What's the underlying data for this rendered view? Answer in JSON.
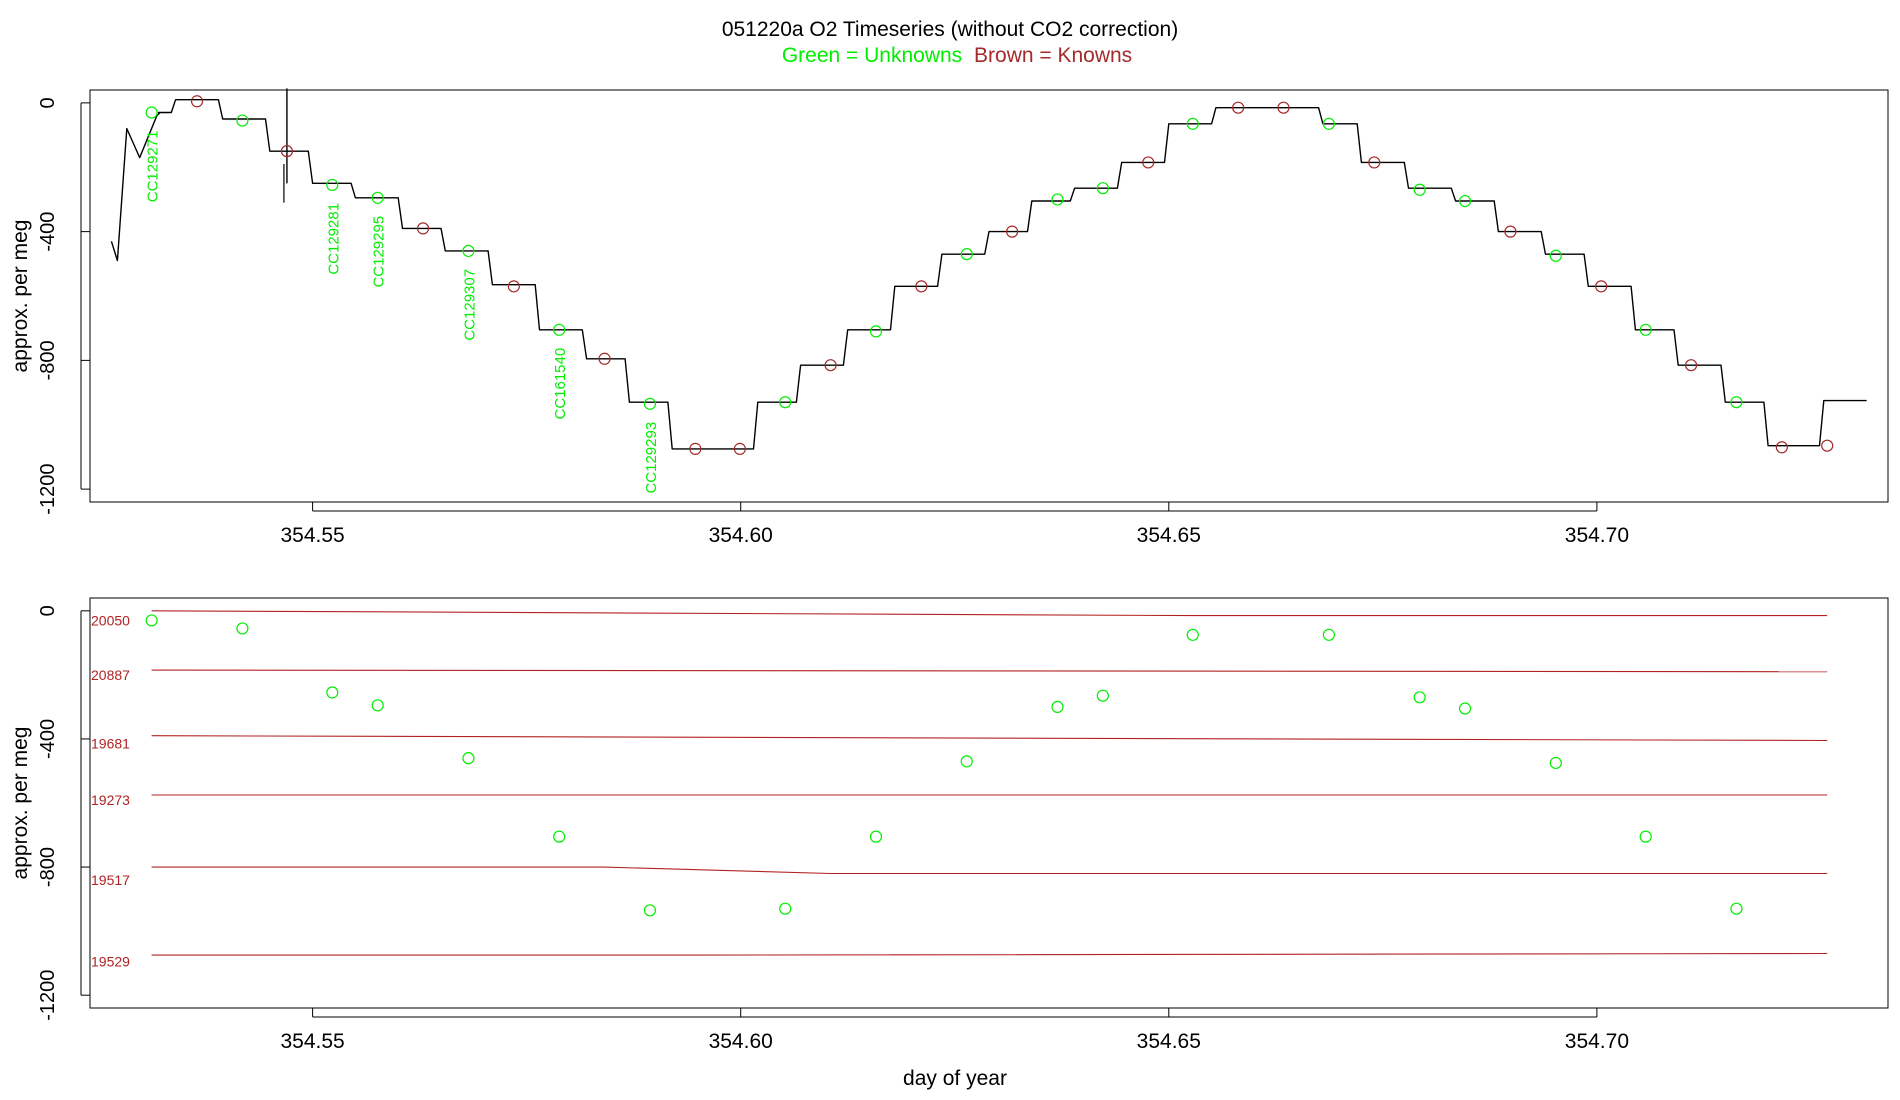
{
  "header": {
    "title": "051220a   O2 Timeseries (without CO2 correction)",
    "legend_green": "Green = Unknowns",
    "legend_brown": "Brown = Knowns"
  },
  "colors": {
    "unknown": "#00ee00",
    "known": "#a52a2a",
    "trace": "#000000",
    "ref_line": "#b22222",
    "ref_label": "#b22222"
  },
  "chart_data": [
    {
      "type": "line",
      "panel": "top",
      "title": "051220a   O2 Timeseries (without CO2 correction)",
      "xlabel": "",
      "ylabel": "approx. per meg",
      "xlim": [
        354.524,
        354.734
      ],
      "ylim": [
        -1240,
        40
      ],
      "xticks": [
        354.55,
        354.6,
        354.65,
        354.7
      ],
      "xtick_labels": [
        "354.55",
        "354.60",
        "354.65",
        "354.70"
      ],
      "yticks": [
        0,
        -400,
        -800,
        -1200
      ],
      "ytick_labels": [
        "0",
        "-400",
        "-800",
        "-1200"
      ],
      "grid": false,
      "trace": {
        "name": "O2 signal",
        "start": [
          354.5265,
          -430
        ],
        "transient": [
          [
            354.5272,
            -490
          ],
          [
            354.5283,
            -80
          ],
          [
            354.5298,
            -170
          ],
          [
            354.5318,
            -40
          ],
          [
            354.5322,
            -30
          ]
        ],
        "steps": [
          [
            354.532,
            354.5335,
            -30
          ],
          [
            354.534,
            354.539,
            10
          ],
          [
            354.5395,
            354.5445,
            -50
          ],
          [
            354.545,
            354.5495,
            -150
          ],
          [
            354.55,
            354.5545,
            -250
          ],
          [
            354.555,
            354.56,
            -295
          ],
          [
            354.5605,
            354.565,
            -390
          ],
          [
            354.5655,
            354.5705,
            -460
          ],
          [
            354.571,
            354.576,
            -565
          ],
          [
            354.5765,
            354.5815,
            -705
          ],
          [
            354.582,
            354.5865,
            -795
          ],
          [
            354.587,
            354.5915,
            -930
          ],
          [
            354.592,
            354.6015,
            -1075
          ],
          [
            354.602,
            354.6065,
            -930
          ],
          [
            354.607,
            354.612,
            -815
          ],
          [
            354.6125,
            354.6175,
            -705
          ],
          [
            354.618,
            354.623,
            -570
          ],
          [
            354.6235,
            354.6285,
            -470
          ],
          [
            354.629,
            354.6335,
            -400
          ],
          [
            354.634,
            354.6385,
            -305
          ],
          [
            354.639,
            354.644,
            -265
          ],
          [
            354.6445,
            354.6495,
            -185
          ],
          [
            354.65,
            354.655,
            -65
          ],
          [
            354.6555,
            354.6675,
            -15
          ],
          [
            354.668,
            354.672,
            -65
          ],
          [
            354.6725,
            354.6775,
            -185
          ],
          [
            354.678,
            354.683,
            -265
          ],
          [
            354.6835,
            354.688,
            -305
          ],
          [
            354.6885,
            354.6935,
            -400
          ],
          [
            354.694,
            354.6985,
            -470
          ],
          [
            354.699,
            354.704,
            -570
          ],
          [
            354.7045,
            354.709,
            -705
          ],
          [
            354.7095,
            354.7145,
            -815
          ],
          [
            354.715,
            354.7195,
            -930
          ],
          [
            354.72,
            354.726,
            -1065
          ],
          [
            354.7265,
            354.7315,
            -925
          ]
        ],
        "spike": [
          354.547,
          -250,
          45
        ]
      },
      "unknowns": [
        {
          "x": 354.5312,
          "y": -30,
          "label": "CC129271"
        },
        {
          "x": 354.5418,
          "y": -55
        },
        {
          "x": 354.5523,
          "y": -255,
          "label": "CC129281"
        },
        {
          "x": 354.5576,
          "y": -295,
          "label": "CC129295"
        },
        {
          "x": 354.5682,
          "y": -460,
          "label": "CC129307"
        },
        {
          "x": 354.5788,
          "y": -705,
          "label": "CC161540"
        },
        {
          "x": 354.5894,
          "y": -935,
          "label": "CC129293"
        },
        {
          "x": 354.6052,
          "y": -930
        },
        {
          "x": 354.6158,
          "y": -710
        },
        {
          "x": 354.6264,
          "y": -470
        },
        {
          "x": 354.637,
          "y": -300
        },
        {
          "x": 354.6423,
          "y": -265
        },
        {
          "x": 354.6528,
          "y": -65
        },
        {
          "x": 354.6687,
          "y": -65
        },
        {
          "x": 354.6793,
          "y": -270
        },
        {
          "x": 354.6846,
          "y": -305
        },
        {
          "x": 354.6952,
          "y": -475
        },
        {
          "x": 354.7057,
          "y": -705
        },
        {
          "x": 354.7163,
          "y": -930
        }
      ],
      "knowns": [
        {
          "x": 354.5365,
          "y": 5
        },
        {
          "x": 354.547,
          "y": -150
        },
        {
          "x": 354.5629,
          "y": -390
        },
        {
          "x": 354.5735,
          "y": -570
        },
        {
          "x": 354.5841,
          "y": -795
        },
        {
          "x": 354.5947,
          "y": -1075
        },
        {
          "x": 354.5999,
          "y": -1075
        },
        {
          "x": 354.6105,
          "y": -815
        },
        {
          "x": 354.6211,
          "y": -570
        },
        {
          "x": 354.6317,
          "y": -400
        },
        {
          "x": 354.6476,
          "y": -185
        },
        {
          "x": 354.6581,
          "y": -15
        },
        {
          "x": 354.6634,
          "y": -15
        },
        {
          "x": 354.674,
          "y": -185
        },
        {
          "x": 354.6899,
          "y": -400
        },
        {
          "x": 354.7005,
          "y": -570
        },
        {
          "x": 354.711,
          "y": -815
        },
        {
          "x": 354.7216,
          "y": -1070
        },
        {
          "x": 354.7269,
          "y": -1065
        }
      ]
    },
    {
      "type": "scatter",
      "panel": "bottom",
      "title": "",
      "xlabel": "day of year",
      "ylabel": "approx. per meg",
      "xlim": [
        354.524,
        354.734
      ],
      "ylim": [
        -1240,
        40
      ],
      "xticks": [
        354.55,
        354.6,
        354.65,
        354.7
      ],
      "xtick_labels": [
        "354.55",
        "354.60",
        "354.65",
        "354.70"
      ],
      "yticks": [
        0,
        -400,
        -800,
        -1200
      ],
      "ytick_labels": [
        "0",
        "-400",
        "-800",
        "-1200"
      ],
      "grid": false,
      "reference_lines": [
        {
          "label": "20050",
          "label_y": -30,
          "points": [
            [
              354.5312,
              0
            ],
            [
              354.6528,
              -15
            ],
            [
              354.7269,
              -15
            ]
          ]
        },
        {
          "label": "20887",
          "label_y": -200,
          "points": [
            [
              354.5312,
              -185
            ],
            [
              354.7269,
              -190
            ]
          ]
        },
        {
          "label": "19681",
          "label_y": -415,
          "points": [
            [
              354.5312,
              -390
            ],
            [
              354.7269,
              -405
            ]
          ]
        },
        {
          "label": "19273",
          "label_y": -590,
          "points": [
            [
              354.5312,
              -575
            ],
            [
              354.7269,
              -575
            ]
          ]
        },
        {
          "label": "19517",
          "label_y": -840,
          "points": [
            [
              354.5312,
              -800
            ],
            [
              354.5841,
              -800
            ],
            [
              354.6105,
              -820
            ],
            [
              354.7269,
              -820
            ]
          ]
        },
        {
          "label": "19529",
          "label_y": -1095,
          "points": [
            [
              354.5312,
              -1075
            ],
            [
              354.5947,
              -1075
            ],
            [
              354.7269,
              -1070
            ]
          ]
        }
      ],
      "unknowns": [
        {
          "x": 354.5312,
          "y": -30
        },
        {
          "x": 354.5418,
          "y": -55
        },
        {
          "x": 354.5523,
          "y": -255
        },
        {
          "x": 354.5576,
          "y": -295
        },
        {
          "x": 354.5682,
          "y": -460
        },
        {
          "x": 354.5788,
          "y": -705
        },
        {
          "x": 354.5894,
          "y": -935
        },
        {
          "x": 354.6052,
          "y": -930
        },
        {
          "x": 354.6158,
          "y": -705
        },
        {
          "x": 354.6264,
          "y": -470
        },
        {
          "x": 354.637,
          "y": -300
        },
        {
          "x": 354.6423,
          "y": -265
        },
        {
          "x": 354.6528,
          "y": -75
        },
        {
          "x": 354.6687,
          "y": -75
        },
        {
          "x": 354.6793,
          "y": -270
        },
        {
          "x": 354.6846,
          "y": -305
        },
        {
          "x": 354.6952,
          "y": -475
        },
        {
          "x": 354.7057,
          "y": -705
        },
        {
          "x": 354.7163,
          "y": -930
        }
      ]
    }
  ]
}
